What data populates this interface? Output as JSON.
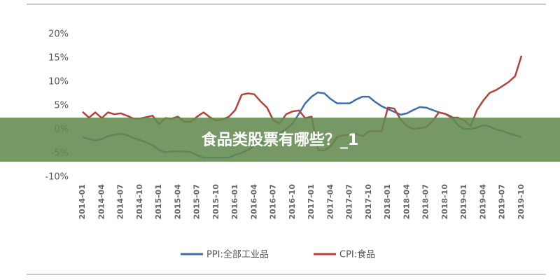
{
  "chart_data": {
    "type": "line",
    "overlay_title": "食品类股票有哪些？_1",
    "categories": [
      "2014-01",
      null,
      null,
      "2014-04",
      null,
      null,
      "2014-07",
      null,
      null,
      "2014-10",
      null,
      null,
      "2015-01",
      null,
      null,
      "2015-04",
      null,
      null,
      "2015-07",
      null,
      null,
      "2015-10",
      null,
      null,
      "2016-01",
      null,
      null,
      "2016-04",
      null,
      null,
      "2016-07",
      null,
      null,
      "2016-10",
      null,
      null,
      "2017-01",
      null,
      null,
      "2017-04",
      null,
      null,
      "2017-07",
      null,
      null,
      "2017-10",
      null,
      null,
      "2018-01",
      null,
      null,
      "2018-04",
      null,
      null,
      "2018-07",
      null,
      null,
      "2018-10",
      null,
      null,
      "2019-01",
      null,
      null,
      "2019-04",
      null,
      null,
      "2019-07",
      null,
      null,
      "2019-10"
    ],
    "series": [
      {
        "name": "PPI:全部工业品",
        "color": "#3e6fa8",
        "values": [
          -1.6,
          -2.0,
          -2.3,
          -2.0,
          -1.4,
          -1.1,
          -0.9,
          -1.2,
          -1.8,
          -2.2,
          -2.7,
          -3.3,
          -4.3,
          -4.8,
          -4.6,
          -4.6,
          -4.6,
          -4.8,
          -5.4,
          -5.9,
          -5.9,
          -5.9,
          -5.9,
          -5.9,
          -5.3,
          -4.9,
          -4.3,
          -3.4,
          -2.8,
          -2.6,
          -1.7,
          -0.8,
          0.1,
          1.2,
          3.3,
          5.5,
          6.9,
          7.8,
          7.6,
          6.4,
          5.5,
          5.5,
          5.5,
          6.3,
          6.9,
          6.9,
          5.8,
          4.9,
          4.3,
          3.7,
          3.1,
          3.4,
          4.1,
          4.7,
          4.6,
          4.1,
          3.6,
          3.3,
          2.7,
          0.9,
          0.1,
          0.1,
          0.4,
          0.9,
          0.6,
          0.0,
          -0.3,
          -0.8,
          -1.2,
          -1.6
        ]
      },
      {
        "name": "CPI:食品",
        "color": "#b8413a",
        "values": [
          3.7,
          2.5,
          3.6,
          2.4,
          3.6,
          3.2,
          3.4,
          2.9,
          2.3,
          2.3,
          2.6,
          2.9,
          1.1,
          2.4,
          2.3,
          2.7,
          1.6,
          1.6,
          2.7,
          3.6,
          2.6,
          1.9,
          2.1,
          2.7,
          4.1,
          7.3,
          7.6,
          7.4,
          5.9,
          4.6,
          1.9,
          1.3,
          3.2,
          3.8,
          4.0,
          2.4,
          2.7,
          -4.3,
          -4.4,
          -3.5,
          -1.6,
          -1.2,
          -1.1,
          -0.9,
          -1.4,
          -0.4,
          -0.3,
          -0.4,
          4.6,
          4.4,
          2.1,
          0.7,
          0.1,
          0.3,
          0.5,
          1.7,
          3.6,
          3.3,
          2.5,
          2.5,
          1.9,
          0.7,
          4.1,
          6.1,
          7.7,
          8.3,
          9.1,
          10.0,
          11.2,
          15.5
        ]
      }
    ],
    "ylim": [
      -10,
      20
    ],
    "yticks": [
      {
        "value": -10,
        "label": "-10%"
      },
      {
        "value": -5,
        "label": "-5%"
      },
      {
        "value": 0,
        "label": "0%"
      },
      {
        "value": 5,
        "label": "5%"
      },
      {
        "value": 10,
        "label": "10%"
      },
      {
        "value": 15,
        "label": "15%"
      },
      {
        "value": 20,
        "label": "20%"
      }
    ]
  }
}
